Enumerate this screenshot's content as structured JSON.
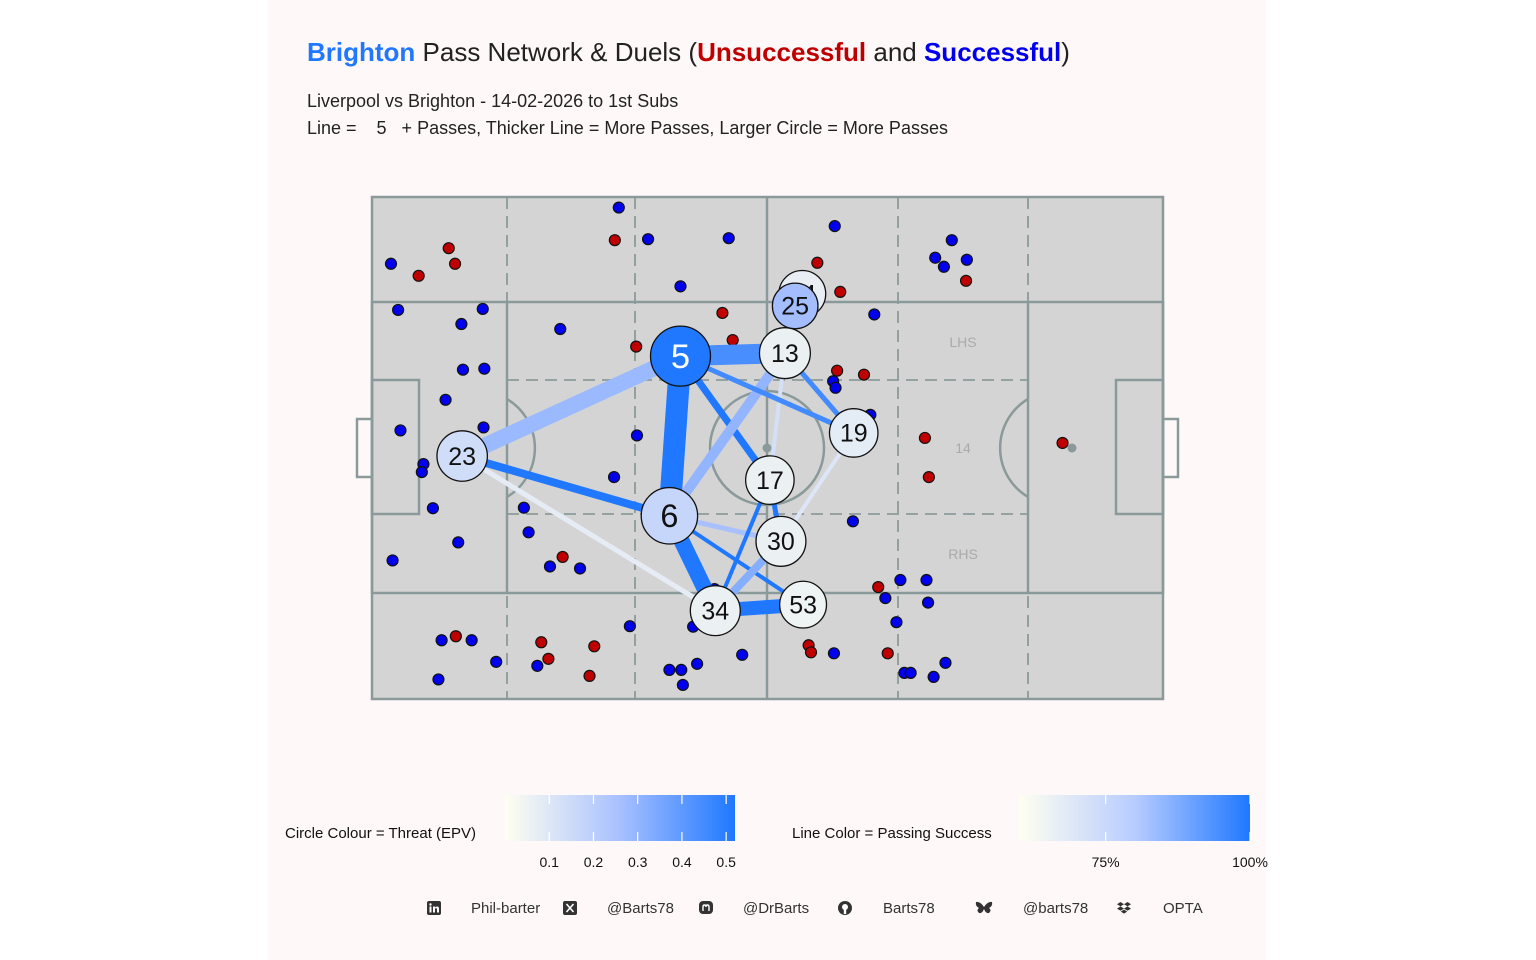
{
  "title": {
    "team": "Brighton",
    "mid": " Pass Network & Duels (",
    "bad": "Unsuccessful",
    "and": " and ",
    "good": "Successful",
    "end": ")"
  },
  "subtitle1": "Liverpool vs Brighton - 14-02-2026 to 1st Subs",
  "subtitle2": "Line =    5   + Passes, Thicker Line = More Passes, Larger Circle = More Passes",
  "colors": {
    "team": "#1f78ff",
    "unsuccessful": "#c00000",
    "successful": "#0000ee",
    "pitch": "#d4d4d4",
    "pitch_lines": "#8a9a9a",
    "panel": "#fff8f8"
  },
  "pitch_labels": {
    "lhs": "LHS",
    "center": "14",
    "rhs": "RHS"
  },
  "chart_data": {
    "type": "pass-network",
    "axes": {
      "x": [
        0,
        100
      ],
      "y": [
        0,
        100
      ],
      "grid": false
    },
    "nodes": [
      {
        "id": "5",
        "x": 39.0,
        "y": 68.3,
        "size": 1.0,
        "epv": 0.52
      },
      {
        "id": "13",
        "x": 52.2,
        "y": 68.9,
        "size": 0.62,
        "epv": 0.06
      },
      {
        "id": "24",
        "x": 54.4,
        "y": 80.7,
        "size": 0.45,
        "epv": 0.07
      },
      {
        "id": "25",
        "x": 53.5,
        "y": 78.3,
        "size": 0.4,
        "epv": 0.27
      },
      {
        "id": "19",
        "x": 60.9,
        "y": 53.0,
        "size": 0.52,
        "epv": 0.08
      },
      {
        "id": "17",
        "x": 50.3,
        "y": 43.6,
        "size": 0.52,
        "epv": 0.06
      },
      {
        "id": "6",
        "x": 37.6,
        "y": 36.5,
        "size": 0.85,
        "epv": 0.17
      },
      {
        "id": "23",
        "x": 11.4,
        "y": 48.4,
        "size": 0.6,
        "epv": 0.14
      },
      {
        "id": "30",
        "x": 51.7,
        "y": 31.4,
        "size": 0.58,
        "epv": 0.06
      },
      {
        "id": "34",
        "x": 43.4,
        "y": 17.6,
        "size": 0.58,
        "epv": 0.06
      },
      {
        "id": "53",
        "x": 54.5,
        "y": 18.8,
        "size": 0.45,
        "epv": 0.05
      }
    ],
    "edges": [
      {
        "from": "5",
        "to": "6",
        "width": 22,
        "success": 1.0
      },
      {
        "from": "5",
        "to": "13",
        "width": 20,
        "success": 0.94
      },
      {
        "from": "5",
        "to": "23",
        "width": 16,
        "success": 0.82
      },
      {
        "from": "5",
        "to": "17",
        "width": 7,
        "success": 1.0
      },
      {
        "from": "13",
        "to": "6",
        "width": 10,
        "success": 0.83
      },
      {
        "from": "13",
        "to": "17",
        "width": 4,
        "success": 0.7
      },
      {
        "from": "13",
        "to": "19",
        "width": 5,
        "success": 0.95
      },
      {
        "from": "5",
        "to": "19",
        "width": 5,
        "success": 0.95
      },
      {
        "from": "17",
        "to": "30",
        "width": 5,
        "success": 1.0
      },
      {
        "from": "19",
        "to": "30",
        "width": 4,
        "success": 0.68
      },
      {
        "from": "23",
        "to": "6",
        "width": 8,
        "success": 1.0
      },
      {
        "from": "23",
        "to": "34",
        "width": 5,
        "success": 0.66
      },
      {
        "from": "6",
        "to": "34",
        "width": 16,
        "success": 1.0
      },
      {
        "from": "6",
        "to": "30",
        "width": 5,
        "success": 0.8
      },
      {
        "from": "6",
        "to": "53",
        "width": 4,
        "success": 1.0
      },
      {
        "from": "34",
        "to": "53",
        "width": 14,
        "success": 1.0
      },
      {
        "from": "34",
        "to": "30",
        "width": 8,
        "success": 0.85
      },
      {
        "from": "34",
        "to": "17",
        "width": 4,
        "success": 1.0
      }
    ],
    "duels": [
      [
        2.4,
        86.7,
        0
      ],
      [
        5.9,
        84.3,
        1
      ],
      [
        9.7,
        89.8,
        1
      ],
      [
        10.5,
        86.7,
        1
      ],
      [
        3.3,
        77.5,
        0
      ],
      [
        11.3,
        74.7,
        0
      ],
      [
        14.0,
        77.7,
        0
      ],
      [
        11.5,
        65.6,
        0
      ],
      [
        14.2,
        65.8,
        0
      ],
      [
        9.3,
        59.6,
        0
      ],
      [
        3.6,
        53.5,
        0
      ],
      [
        14.1,
        54.1,
        0
      ],
      [
        6.5,
        46.8,
        0
      ],
      [
        6.3,
        45.2,
        0
      ],
      [
        7.7,
        38.0,
        0
      ],
      [
        10.9,
        31.2,
        0
      ],
      [
        2.6,
        27.6,
        0
      ],
      [
        8.8,
        11.7,
        0
      ],
      [
        10.6,
        12.5,
        1
      ],
      [
        12.6,
        11.7,
        0
      ],
      [
        15.7,
        7.4,
        0
      ],
      [
        8.4,
        3.9,
        0
      ],
      [
        19.8,
        33.2,
        0
      ],
      [
        19.2,
        38.1,
        0
      ],
      [
        24.1,
        28.3,
        1
      ],
      [
        22.5,
        26.4,
        0
      ],
      [
        26.3,
        26.0,
        0
      ],
      [
        21.4,
        11.3,
        1
      ],
      [
        22.3,
        8.0,
        1
      ],
      [
        20.9,
        6.6,
        0
      ],
      [
        28.1,
        10.5,
        1
      ],
      [
        27.5,
        4.6,
        1
      ],
      [
        32.6,
        14.5,
        0
      ],
      [
        23.8,
        73.7,
        0
      ],
      [
        33.5,
        52.5,
        0
      ],
      [
        30.6,
        44.2,
        0
      ],
      [
        33.4,
        70.2,
        1
      ],
      [
        30.7,
        91.4,
        1
      ],
      [
        31.2,
        97.9,
        0
      ],
      [
        34.9,
        91.6,
        0
      ],
      [
        39.0,
        82.2,
        0
      ],
      [
        44.3,
        76.9,
        1
      ],
      [
        45.6,
        71.5,
        1
      ],
      [
        45.1,
        91.8,
        0
      ],
      [
        37.6,
        5.8,
        0
      ],
      [
        39.1,
        5.8,
        0
      ],
      [
        41.1,
        7.0,
        0
      ],
      [
        39.3,
        2.8,
        0
      ],
      [
        40.6,
        14.4,
        0
      ],
      [
        46.8,
        8.8,
        0
      ],
      [
        43.3,
        21.9,
        0
      ],
      [
        58.5,
        94.2,
        0
      ],
      [
        56.3,
        86.9,
        1
      ],
      [
        59.2,
        81.1,
        1
      ],
      [
        63.5,
        76.6,
        0
      ],
      [
        58.8,
        65.4,
        1
      ],
      [
        62.2,
        64.6,
        1
      ],
      [
        58.3,
        63.3,
        0
      ],
      [
        58.6,
        62.0,
        0
      ],
      [
        63.0,
        56.6,
        0
      ],
      [
        60.8,
        35.4,
        0
      ],
      [
        64.0,
        22.3,
        1
      ],
      [
        64.9,
        20.1,
        0
      ],
      [
        66.8,
        23.7,
        0
      ],
      [
        70.1,
        23.7,
        0
      ],
      [
        70.3,
        19.2,
        0
      ],
      [
        66.3,
        15.3,
        0
      ],
      [
        55.2,
        10.7,
        1
      ],
      [
        55.5,
        9.3,
        1
      ],
      [
        58.4,
        9.1,
        0
      ],
      [
        65.2,
        9.1,
        1
      ],
      [
        67.3,
        5.2,
        0
      ],
      [
        68.1,
        5.2,
        0
      ],
      [
        71.0,
        4.4,
        0
      ],
      [
        72.5,
        7.2,
        0
      ],
      [
        69.9,
        52.0,
        1
      ],
      [
        73.3,
        91.4,
        0
      ],
      [
        75.2,
        87.5,
        0
      ],
      [
        71.2,
        87.9,
        0
      ],
      [
        72.3,
        86.1,
        0
      ],
      [
        75.1,
        83.3,
        1
      ],
      [
        87.3,
        51.0,
        1
      ],
      [
        70.4,
        44.2,
        1
      ]
    ],
    "legend_epv": {
      "label": "Circle Colour = Threat (EPV)",
      "ticks": [
        "0.1",
        "0.2",
        "0.3",
        "0.4",
        "0.5"
      ],
      "values": [
        0.1,
        0.2,
        0.3,
        0.4,
        0.5
      ],
      "range": [
        0.0,
        0.52
      ]
    },
    "legend_success": {
      "label": "Line Color = Passing Success",
      "ticks": [
        "75%",
        "100%"
      ],
      "values": [
        0.75,
        1.0
      ],
      "range": [
        0.6,
        1.0
      ]
    }
  },
  "footer": {
    "linkedin": "Phil-barter",
    "x": "@Barts78",
    "mastodon": "@DrBarts",
    "github": "Barts78",
    "bluesky": "@barts78",
    "data": "OPTA"
  }
}
